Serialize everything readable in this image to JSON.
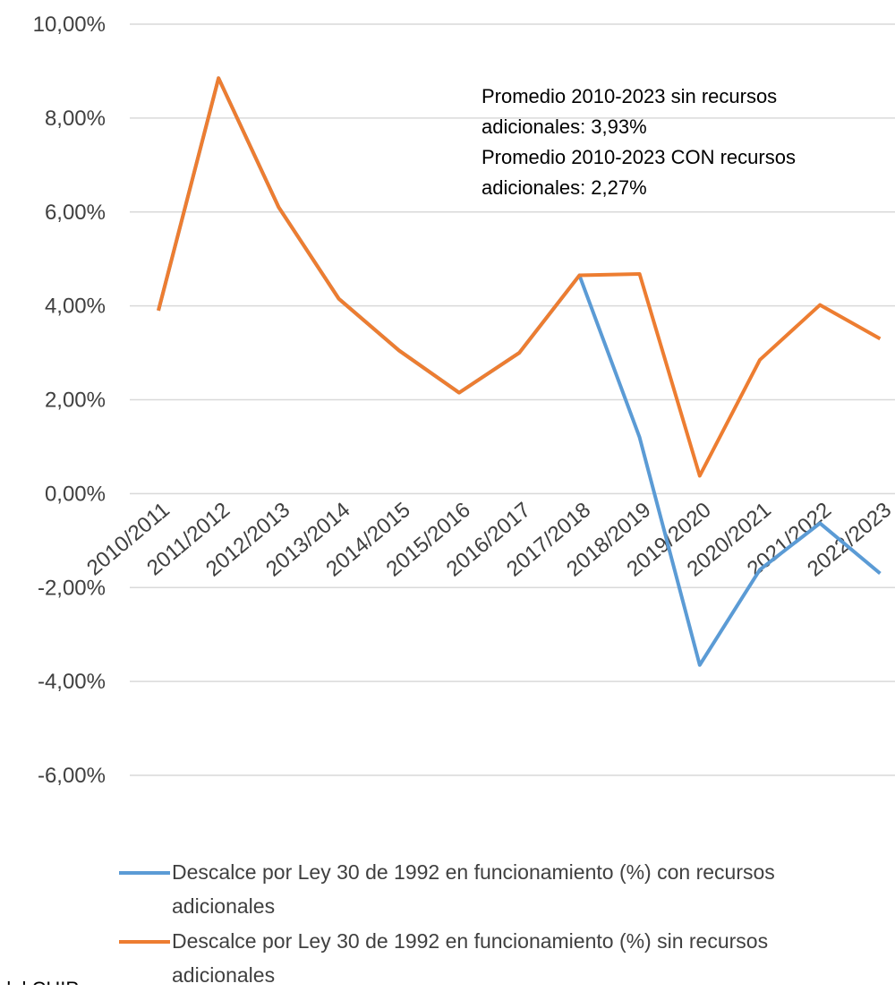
{
  "chart_data": {
    "type": "line",
    "categories": [
      "2010/2011",
      "2011/2012",
      "2012/2013",
      "2013/2014",
      "2014/2015",
      "2015/2016",
      "2016/2017",
      "2017/2018",
      "2018/2019",
      "2019/2020",
      "2020/2021",
      "2021/2022",
      "2022/2023"
    ],
    "series": [
      {
        "name": "Descalce por Ley 30 de 1992 en funcionamiento (%) con recursos adicionales",
        "color": "#5b9bd5",
        "values": [
          3.9,
          8.85,
          6.1,
          4.15,
          3.05,
          2.15,
          3.0,
          4.65,
          1.2,
          -3.65,
          -1.62,
          -0.63,
          -1.7
        ]
      },
      {
        "name": "Descalce por Ley 30 de 1992 en funcionamiento (%) sin recursos adicionales",
        "color": "#ed7d31",
        "values": [
          3.9,
          8.85,
          6.1,
          4.15,
          3.05,
          2.15,
          3.0,
          4.65,
          4.68,
          0.38,
          2.85,
          4.02,
          3.3
        ]
      }
    ],
    "ylim": [
      -6,
      10
    ],
    "yticks": [
      {
        "value": -6,
        "label": "-6,00%"
      },
      {
        "value": -4,
        "label": "-4,00%"
      },
      {
        "value": -2,
        "label": "-2,00%"
      },
      {
        "value": 0,
        "label": "0,00%"
      },
      {
        "value": 2,
        "label": "2,00%"
      },
      {
        "value": 4,
        "label": "4,00%"
      },
      {
        "value": 6,
        "label": "6,00%"
      },
      {
        "value": 8,
        "label": "8,00%"
      },
      {
        "value": 10,
        "label": "10,00%"
      }
    ],
    "grid": true,
    "annotation": [
      "Promedio 2010-2023 sin recursos",
      "adicionales: 3,93%",
      "Promedio 2010-2023 CON recursos",
      "adicionales: 2,27%"
    ],
    "footer": "del CHIP"
  }
}
